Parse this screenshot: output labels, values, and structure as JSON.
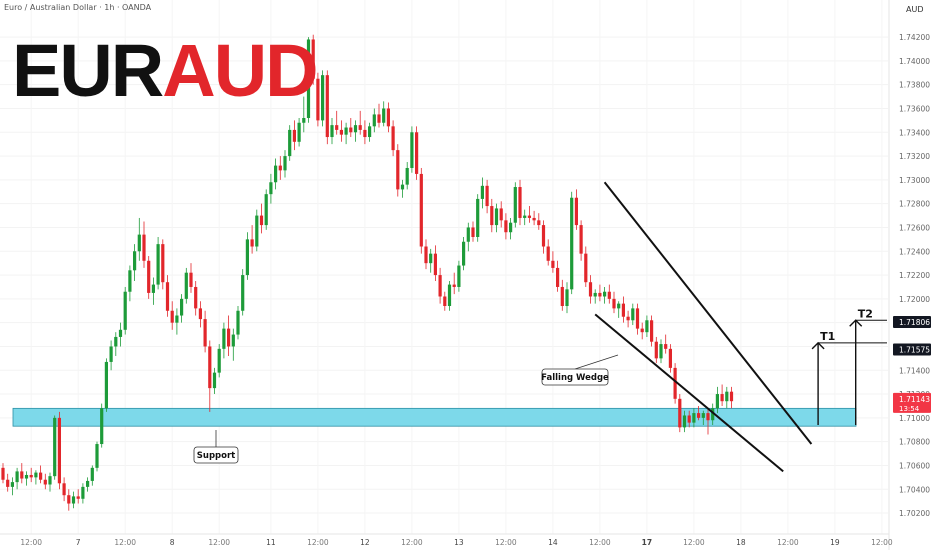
{
  "header": {
    "title": "Euro / Australian Dollar · 1h · OANDA"
  },
  "logo": {
    "base": "EUR",
    "quote": "AUD"
  },
  "chart_data": {
    "type": "candlestick",
    "currency_label": "AUD",
    "ylim": [
      1.7015,
      1.7431
    ],
    "y_ticks": [
      "1.70200",
      "1.70400",
      "1.70600",
      "1.70800",
      "1.71000",
      "1.71200",
      "1.71400",
      "1.71600",
      "1.71800",
      "1.72000",
      "1.72200",
      "1.72400",
      "1.72600",
      "1.72800",
      "1.73000",
      "1.73200",
      "1.73400",
      "1.73600",
      "1.73800",
      "1.74000",
      "1.74200"
    ],
    "x_ticks": [
      "12:00",
      "7",
      "12:00",
      "8",
      "12:00",
      "11",
      "12:00",
      "12",
      "12:00",
      "13",
      "12:00",
      "14",
      "12:00",
      "17",
      "12:00",
      "18",
      "12:00",
      "19",
      "12:00"
    ],
    "x_tick_bars": [
      6,
      16,
      26,
      36,
      46,
      57,
      67,
      77,
      87,
      97,
      107,
      117,
      127,
      137,
      147,
      157,
      167,
      177,
      187
    ],
    "price_tags": [
      {
        "label": "1.71806",
        "value": 1.71806,
        "style": "dark"
      },
      {
        "label": "1.71575",
        "value": 1.71575,
        "style": "dark"
      },
      {
        "label": "1.71143",
        "value": 1.71143,
        "sublabel": "13:54",
        "style": "red"
      }
    ],
    "annotations": {
      "support_label": "Support",
      "wedge_label": "Falling Wedge",
      "target1_label": "T1",
      "target2_label": "T2"
    },
    "support_zone": [
      1.7093,
      1.7108
    ],
    "wedge_upper": [
      [
        128,
        1.7298
      ],
      [
        172,
        1.7078
      ]
    ],
    "wedge_lower": [
      [
        126,
        1.7187
      ],
      [
        166,
        1.7055
      ]
    ],
    "targets": [
      {
        "label": "T1",
        "bar": 173,
        "from": 1.7094,
        "to": 1.7163
      },
      {
        "label": "T2",
        "bar": 181,
        "from": 1.7094,
        "to": 1.7182
      }
    ],
    "colors": {
      "up": "#1d9b39",
      "down": "#e2262b",
      "zone": "#7dd9ea",
      "zone_border": "#2a8ea3"
    },
    "candles": [
      [
        1.7058,
        1.7062,
        1.7045,
        1.7048
      ],
      [
        1.7048,
        1.7053,
        1.7038,
        1.7042
      ],
      [
        1.7042,
        1.705,
        1.7035,
        1.7046
      ],
      [
        1.7046,
        1.7058,
        1.704,
        1.7055
      ],
      [
        1.7055,
        1.7062,
        1.7045,
        1.7049
      ],
      [
        1.7049,
        1.7055,
        1.7043,
        1.7052
      ],
      [
        1.7052,
        1.7058,
        1.7046,
        1.705
      ],
      [
        1.705,
        1.7056,
        1.7044,
        1.7054
      ],
      [
        1.7054,
        1.706,
        1.7045,
        1.7048
      ],
      [
        1.7048,
        1.7053,
        1.704,
        1.7044
      ],
      [
        1.7044,
        1.7054,
        1.7038,
        1.7051
      ],
      [
        1.7051,
        1.7102,
        1.7048,
        1.71
      ],
      [
        1.71,
        1.7105,
        1.704,
        1.7045
      ],
      [
        1.7045,
        1.705,
        1.703,
        1.7035
      ],
      [
        1.7035,
        1.704,
        1.7022,
        1.7028
      ],
      [
        1.7028,
        1.7038,
        1.7024,
        1.7034
      ],
      [
        1.7034,
        1.704,
        1.7028,
        1.7032
      ],
      [
        1.7032,
        1.7045,
        1.7028,
        1.7042
      ],
      [
        1.7042,
        1.705,
        1.7038,
        1.7047
      ],
      [
        1.7047,
        1.706,
        1.7043,
        1.7058
      ],
      [
        1.7058,
        1.708,
        1.7055,
        1.7078
      ],
      [
        1.7078,
        1.7112,
        1.7075,
        1.7108
      ],
      [
        1.7108,
        1.715,
        1.7105,
        1.7147
      ],
      [
        1.7147,
        1.7165,
        1.714,
        1.716
      ],
      [
        1.716,
        1.7172,
        1.7152,
        1.7168
      ],
      [
        1.7168,
        1.718,
        1.716,
        1.7174
      ],
      [
        1.7174,
        1.721,
        1.717,
        1.7206
      ],
      [
        1.7206,
        1.7228,
        1.7198,
        1.7224
      ],
      [
        1.7224,
        1.7246,
        1.7215,
        1.724
      ],
      [
        1.724,
        1.7268,
        1.7232,
        1.7254
      ],
      [
        1.7254,
        1.7265,
        1.7226,
        1.7232
      ],
      [
        1.7232,
        1.7236,
        1.72,
        1.7205
      ],
      [
        1.7205,
        1.7218,
        1.7195,
        1.7212
      ],
      [
        1.7212,
        1.7252,
        1.7208,
        1.7246
      ],
      [
        1.7246,
        1.725,
        1.7208,
        1.7214
      ],
      [
        1.7214,
        1.722,
        1.7185,
        1.719
      ],
      [
        1.719,
        1.7198,
        1.7174,
        1.718
      ],
      [
        1.718,
        1.7192,
        1.717,
        1.7186
      ],
      [
        1.7186,
        1.7204,
        1.718,
        1.72
      ],
      [
        1.72,
        1.7226,
        1.7196,
        1.7222
      ],
      [
        1.7222,
        1.723,
        1.7205,
        1.721
      ],
      [
        1.721,
        1.7215,
        1.7186,
        1.7192
      ],
      [
        1.7192,
        1.7198,
        1.7176,
        1.7183
      ],
      [
        1.7183,
        1.719,
        1.7155,
        1.716
      ],
      [
        1.716,
        1.7165,
        1.7105,
        1.7125
      ],
      [
        1.7125,
        1.7142,
        1.712,
        1.7138
      ],
      [
        1.7138,
        1.7162,
        1.7134,
        1.7158
      ],
      [
        1.7158,
        1.718,
        1.715,
        1.7175
      ],
      [
        1.7175,
        1.7186,
        1.7152,
        1.716
      ],
      [
        1.716,
        1.7175,
        1.7148,
        1.717
      ],
      [
        1.717,
        1.7194,
        1.7166,
        1.719
      ],
      [
        1.719,
        1.7225,
        1.7186,
        1.722
      ],
      [
        1.722,
        1.7256,
        1.7216,
        1.725
      ],
      [
        1.725,
        1.7262,
        1.7238,
        1.7244
      ],
      [
        1.7244,
        1.7275,
        1.724,
        1.727
      ],
      [
        1.727,
        1.728,
        1.7255,
        1.7262
      ],
      [
        1.7262,
        1.7292,
        1.7258,
        1.7288
      ],
      [
        1.7288,
        1.7305,
        1.728,
        1.7298
      ],
      [
        1.7298,
        1.7318,
        1.7292,
        1.7312
      ],
      [
        1.7312,
        1.732,
        1.73,
        1.7308
      ],
      [
        1.7308,
        1.7325,
        1.7302,
        1.732
      ],
      [
        1.732,
        1.7346,
        1.7316,
        1.7342
      ],
      [
        1.7342,
        1.735,
        1.7325,
        1.7332
      ],
      [
        1.7332,
        1.7352,
        1.7328,
        1.7348
      ],
      [
        1.7348,
        1.737,
        1.734,
        1.7352
      ],
      [
        1.7352,
        1.742,
        1.7348,
        1.7418
      ],
      [
        1.7418,
        1.7422,
        1.738,
        1.7385
      ],
      [
        1.7385,
        1.739,
        1.7345,
        1.735
      ],
      [
        1.735,
        1.7392,
        1.7345,
        1.7388
      ],
      [
        1.7388,
        1.7392,
        1.733,
        1.7336
      ],
      [
        1.7336,
        1.7352,
        1.733,
        1.7346
      ],
      [
        1.7346,
        1.7358,
        1.7338,
        1.7342
      ],
      [
        1.7342,
        1.735,
        1.7332,
        1.7338
      ],
      [
        1.7338,
        1.7348,
        1.733,
        1.7344
      ],
      [
        1.7344,
        1.7352,
        1.7336,
        1.734
      ],
      [
        1.734,
        1.735,
        1.7332,
        1.7346
      ],
      [
        1.7346,
        1.7358,
        1.7338,
        1.7342
      ],
      [
        1.7342,
        1.735,
        1.733,
        1.7336
      ],
      [
        1.7336,
        1.7348,
        1.7332,
        1.7345
      ],
      [
        1.7345,
        1.736,
        1.734,
        1.7355
      ],
      [
        1.7355,
        1.7364,
        1.7344,
        1.7348
      ],
      [
        1.7348,
        1.7366,
        1.7345,
        1.736
      ],
      [
        1.736,
        1.7365,
        1.734,
        1.7345
      ],
      [
        1.7345,
        1.735,
        1.732,
        1.7325
      ],
      [
        1.7325,
        1.733,
        1.7286,
        1.7292
      ],
      [
        1.7292,
        1.73,
        1.7285,
        1.7296
      ],
      [
        1.7296,
        1.7315,
        1.7292,
        1.731
      ],
      [
        1.731,
        1.7345,
        1.7306,
        1.734
      ],
      [
        1.734,
        1.7345,
        1.73,
        1.7305
      ],
      [
        1.7305,
        1.731,
        1.7238,
        1.7244
      ],
      [
        1.7244,
        1.725,
        1.7225,
        1.723
      ],
      [
        1.723,
        1.7242,
        1.7222,
        1.7238
      ],
      [
        1.7238,
        1.7245,
        1.7215,
        1.722
      ],
      [
        1.722,
        1.7226,
        1.7196,
        1.7202
      ],
      [
        1.7202,
        1.7206,
        1.719,
        1.7194
      ],
      [
        1.7194,
        1.7215,
        1.719,
        1.7212
      ],
      [
        1.7212,
        1.7222,
        1.7204,
        1.721
      ],
      [
        1.721,
        1.7232,
        1.7206,
        1.7228
      ],
      [
        1.7228,
        1.7252,
        1.7224,
        1.7248
      ],
      [
        1.7248,
        1.7264,
        1.724,
        1.726
      ],
      [
        1.726,
        1.7265,
        1.7248,
        1.7252
      ],
      [
        1.7252,
        1.7288,
        1.7248,
        1.7284
      ],
      [
        1.7284,
        1.7302,
        1.7276,
        1.7295
      ],
      [
        1.7295,
        1.73,
        1.7272,
        1.7278
      ],
      [
        1.7278,
        1.7284,
        1.7256,
        1.7262
      ],
      [
        1.7262,
        1.728,
        1.7256,
        1.7276
      ],
      [
        1.7276,
        1.7282,
        1.726,
        1.7266
      ],
      [
        1.7266,
        1.7272,
        1.725,
        1.7256
      ],
      [
        1.7256,
        1.7268,
        1.725,
        1.7264
      ],
      [
        1.7264,
        1.7298,
        1.726,
        1.7294
      ],
      [
        1.7294,
        1.73,
        1.7262,
        1.7268
      ],
      [
        1.7268,
        1.7275,
        1.7262,
        1.727
      ],
      [
        1.727,
        1.7278,
        1.7264,
        1.7268
      ],
      [
        1.7268,
        1.7274,
        1.7262,
        1.7266
      ],
      [
        1.7266,
        1.7272,
        1.7258,
        1.7262
      ],
      [
        1.7262,
        1.7266,
        1.7238,
        1.7244
      ],
      [
        1.7244,
        1.725,
        1.7228,
        1.7232
      ],
      [
        1.7232,
        1.724,
        1.7222,
        1.7226
      ],
      [
        1.7226,
        1.7232,
        1.7206,
        1.721
      ],
      [
        1.721,
        1.7216,
        1.719,
        1.7194
      ],
      [
        1.7194,
        1.7214,
        1.7188,
        1.7208
      ],
      [
        1.7208,
        1.729,
        1.7204,
        1.7285
      ],
      [
        1.7285,
        1.7292,
        1.7258,
        1.7262
      ],
      [
        1.7262,
        1.7266,
        1.7232,
        1.7238
      ],
      [
        1.7238,
        1.7244,
        1.721,
        1.7214
      ],
      [
        1.7214,
        1.722,
        1.7196,
        1.7202
      ],
      [
        1.7202,
        1.7208,
        1.7196,
        1.7205
      ],
      [
        1.7205,
        1.7212,
        1.7198,
        1.7202
      ],
      [
        1.7202,
        1.721,
        1.7196,
        1.7206
      ],
      [
        1.7206,
        1.7212,
        1.7196,
        1.72
      ],
      [
        1.72,
        1.7206,
        1.7188,
        1.7192
      ],
      [
        1.7192,
        1.7198,
        1.7184,
        1.7196
      ],
      [
        1.7196,
        1.7202,
        1.718,
        1.7185
      ],
      [
        1.7185,
        1.719,
        1.7176,
        1.7182
      ],
      [
        1.7182,
        1.7196,
        1.7178,
        1.7192
      ],
      [
        1.7192,
        1.7196,
        1.717,
        1.7175
      ],
      [
        1.7175,
        1.718,
        1.7166,
        1.7172
      ],
      [
        1.7172,
        1.7186,
        1.7168,
        1.7182
      ],
      [
        1.7182,
        1.7186,
        1.716,
        1.7164
      ],
      [
        1.7164,
        1.7168,
        1.7146,
        1.715
      ],
      [
        1.715,
        1.7166,
        1.7146,
        1.7162
      ],
      [
        1.7162,
        1.717,
        1.7154,
        1.7158
      ],
      [
        1.7158,
        1.7162,
        1.7138,
        1.7142
      ],
      [
        1.7142,
        1.7146,
        1.7112,
        1.7116
      ],
      [
        1.7116,
        1.712,
        1.7088,
        1.7092
      ],
      [
        1.7092,
        1.7106,
        1.7088,
        1.7102
      ],
      [
        1.7102,
        1.7106,
        1.7092,
        1.7096
      ],
      [
        1.7096,
        1.7108,
        1.7092,
        1.7104
      ],
      [
        1.7104,
        1.711,
        1.7098,
        1.71
      ],
      [
        1.71,
        1.7106,
        1.7094,
        1.7104
      ],
      [
        1.7104,
        1.7108,
        1.7086,
        1.7098
      ],
      [
        1.7098,
        1.7112,
        1.7094,
        1.7108
      ],
      [
        1.7108,
        1.7126,
        1.7104,
        1.712
      ],
      [
        1.712,
        1.7128,
        1.711,
        1.7114
      ],
      [
        1.7114,
        1.7126,
        1.7108,
        1.7122
      ],
      [
        1.7122,
        1.7126,
        1.7108,
        1.7114
      ]
    ]
  }
}
